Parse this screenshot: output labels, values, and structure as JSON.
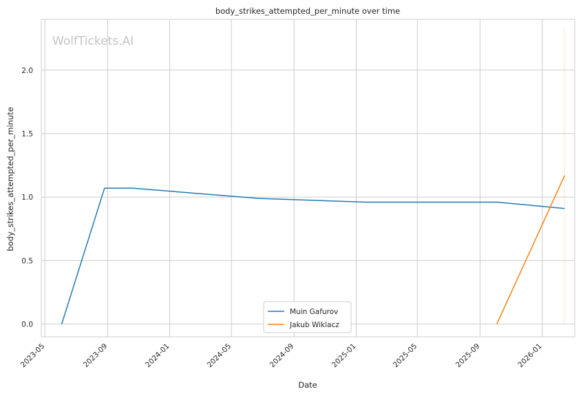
{
  "chart_data": {
    "type": "line",
    "title": "body_strikes_attempted_per_minute over time",
    "xlabel": "Date",
    "ylabel": "body_strikes_attempted_per_minute",
    "watermark": "WolfTickets.AI",
    "x_ticks": [
      "2023-05",
      "2023-09",
      "2024-01",
      "2024-05",
      "2024-09",
      "2025-01",
      "2025-05",
      "2025-09",
      "2026-01"
    ],
    "y_ticks": [
      "0.0",
      "0.5",
      "1.0",
      "1.5",
      "2.0"
    ],
    "ylim": [
      -0.1,
      2.4
    ],
    "xlim": [
      "2023-04-24",
      "2026-03-06"
    ],
    "grid": true,
    "legend_position": "lower center",
    "series": [
      {
        "name": "Muin Gafurov",
        "color": "#1f77b4",
        "x": [
          "2023-06-03",
          "2023-08-26",
          "2023-10-21",
          "2024-06-22",
          "2025-01-18",
          "2025-10-04",
          "2026-02-14"
        ],
        "y": [
          0.0,
          1.07,
          1.07,
          0.99,
          0.96,
          0.96,
          0.91
        ]
      },
      {
        "name": "Jakub Wiklacz",
        "color": "#ff7f0e",
        "x": [
          "2025-10-04",
          "2026-02-14"
        ],
        "y": [
          0.0,
          1.17
        ]
      }
    ],
    "faint_band": {
      "color": "#ff7f0e",
      "x": "2026-02-14",
      "y": [
        0.0,
        2.33
      ]
    }
  }
}
